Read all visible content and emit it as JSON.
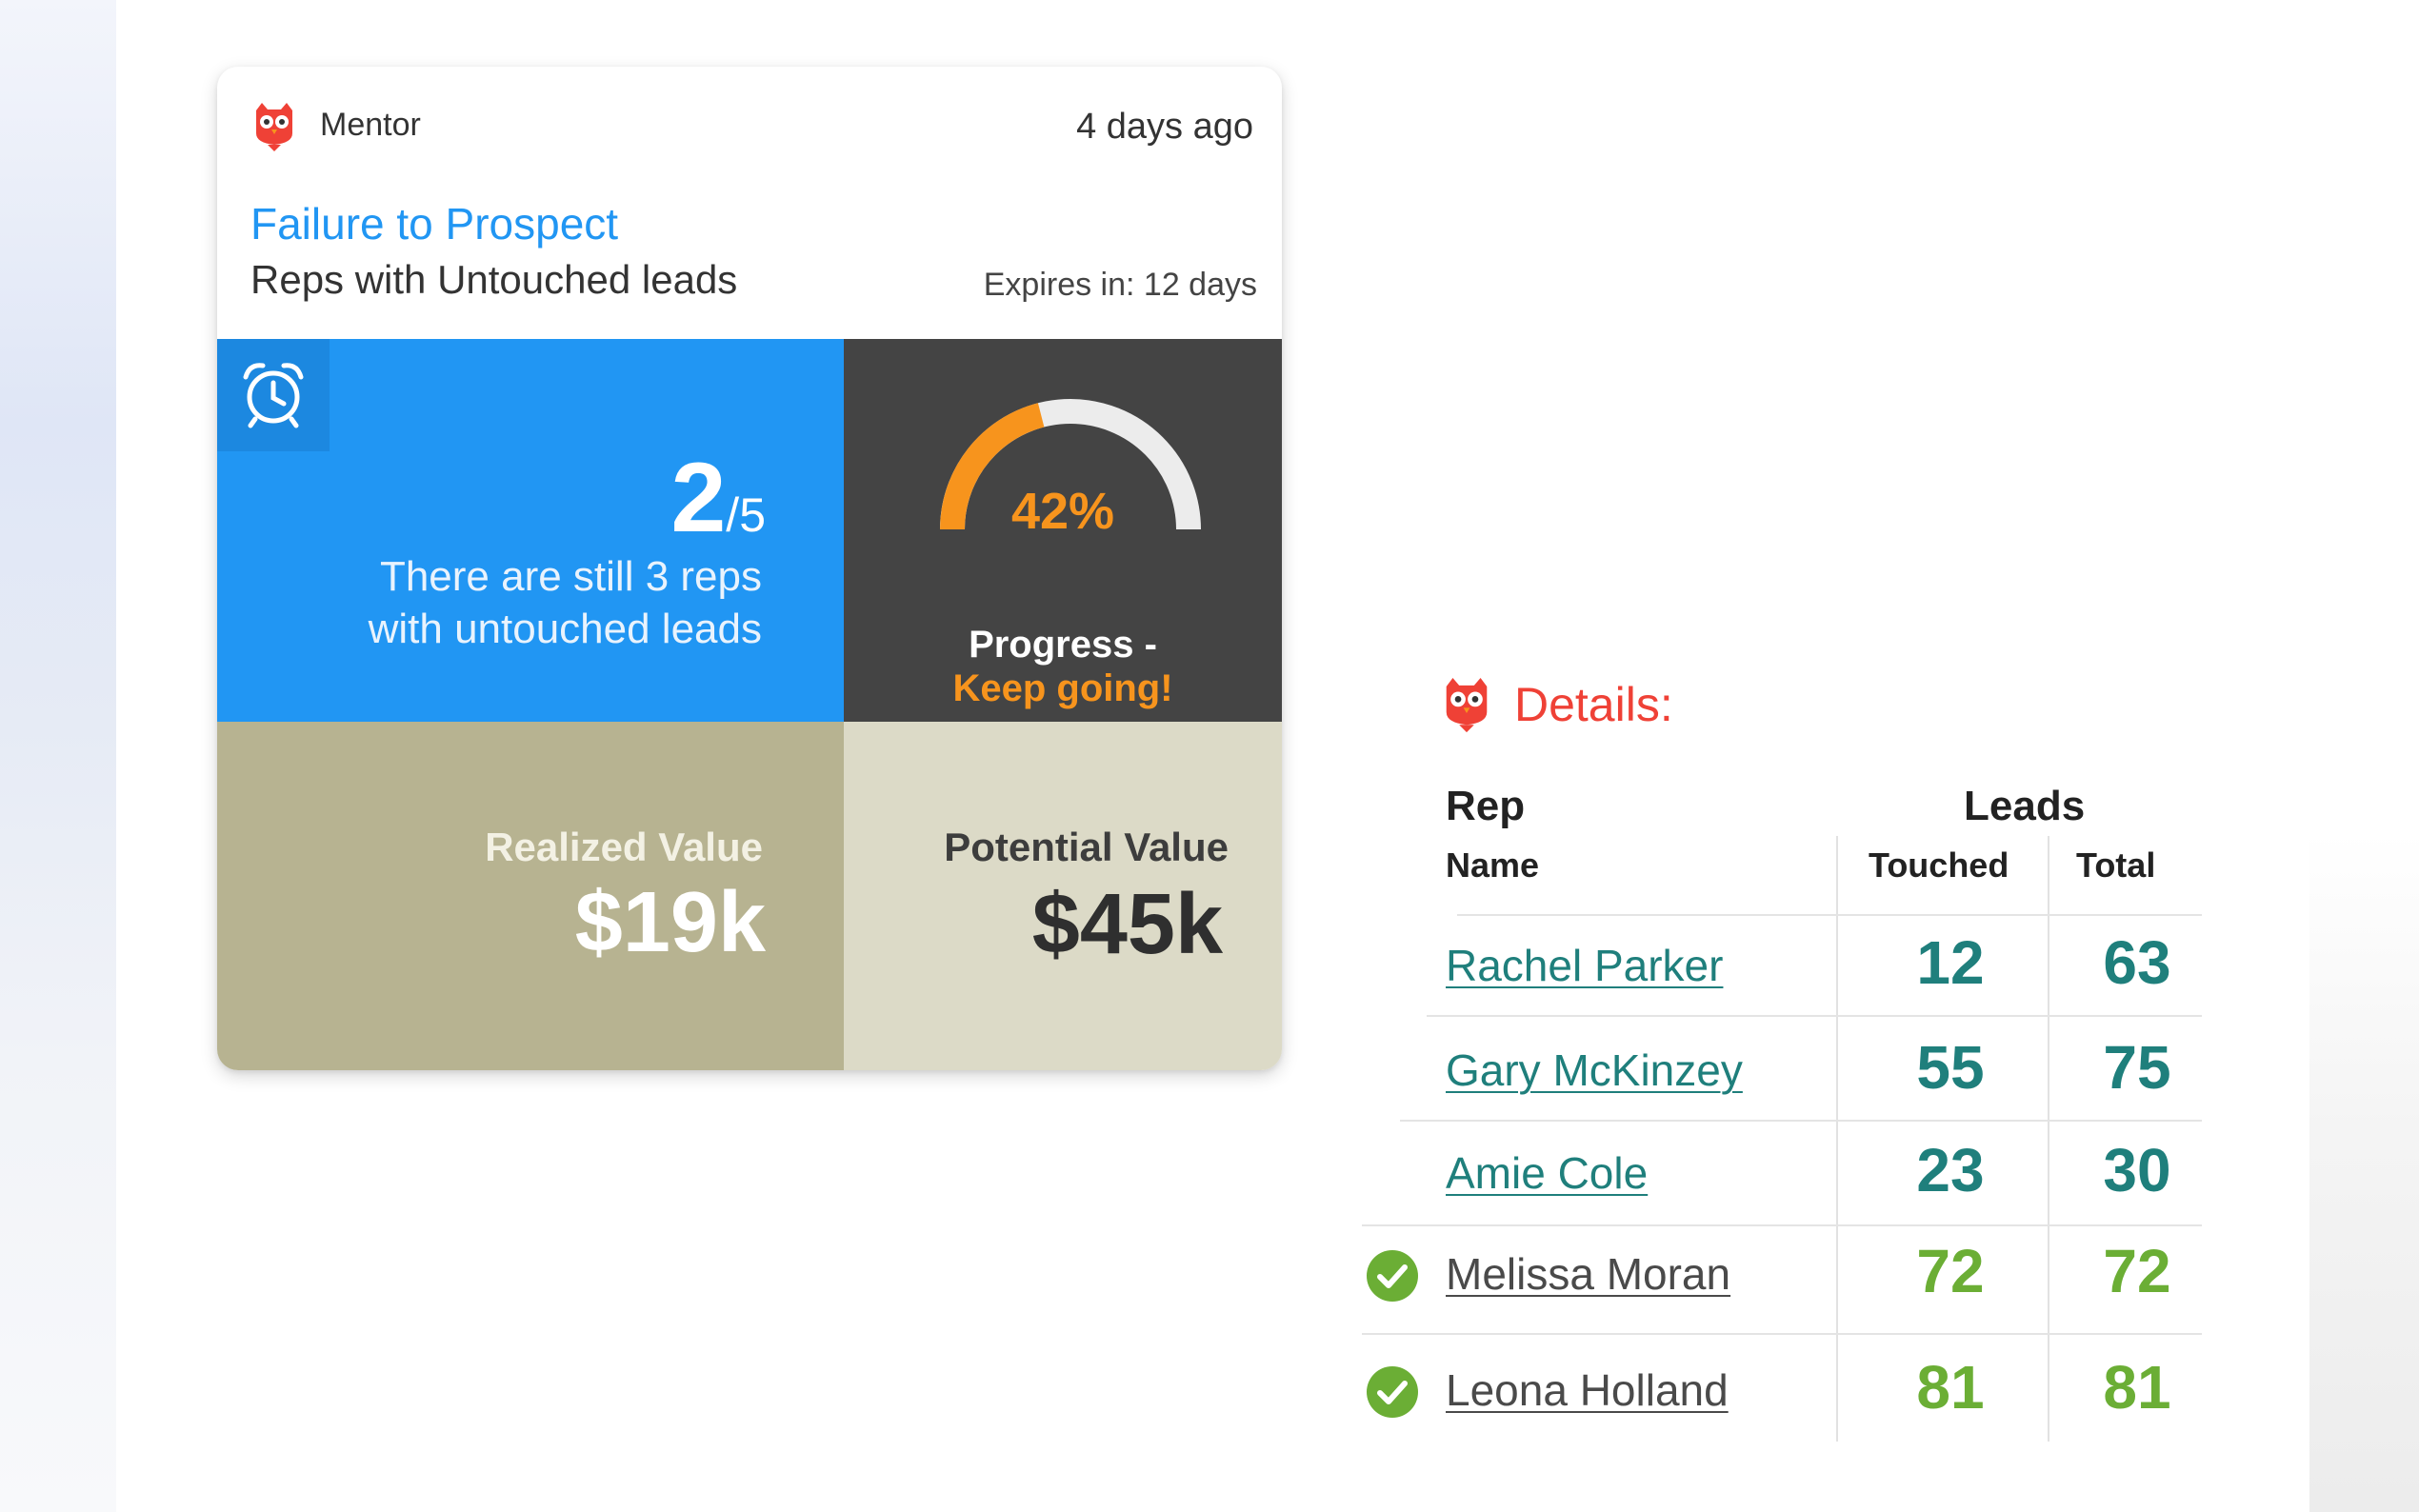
{
  "card": {
    "source": "Mentor",
    "time_ago": "4 days ago",
    "title": "Failure to Prospect",
    "subtitle": "Reps with Untouched leads",
    "expires": "Expires in: 12 days",
    "count_done": "2",
    "count_total": "/5",
    "count_text_line1": "There are still 3 reps",
    "count_text_line2": "with untouched leads",
    "progress_percent": "42%",
    "progress_value": 0.42,
    "progress_label": "Progress -",
    "progress_status": "Keep going!",
    "realized_label": "Realized Value",
    "realized_value": "$19k",
    "potential_label": "Potential Value",
    "potential_value": "$45k"
  },
  "details": {
    "title": "Details:",
    "headers": {
      "rep": "Rep",
      "name": "Name",
      "leads": "Leads",
      "touched": "Touched",
      "total": "Total"
    },
    "rows": [
      {
        "name": "Rachel Parker",
        "touched": "12",
        "total": "63",
        "complete": false
      },
      {
        "name": "Gary McKinzey",
        "touched": "55",
        "total": "75",
        "complete": false
      },
      {
        "name": "Amie Cole",
        "touched": "23",
        "total": "30",
        "complete": false
      },
      {
        "name": "Melissa Moran",
        "touched": "72",
        "total": "72",
        "complete": true
      },
      {
        "name": "Leona Holland",
        "touched": "81",
        "total": "81",
        "complete": true
      }
    ]
  },
  "colors": {
    "accent_blue": "#2196f3",
    "dark_panel": "#444444",
    "orange": "#f7941d",
    "tan": "#b7b391",
    "light_tan": "#dcdac7",
    "teal": "#1f7f7c",
    "green": "#6bae35",
    "brand_red": "#ef4136"
  },
  "icons": {
    "brand": "owl-icon",
    "timer": "alarm-clock-icon",
    "complete": "check-circle-icon"
  }
}
